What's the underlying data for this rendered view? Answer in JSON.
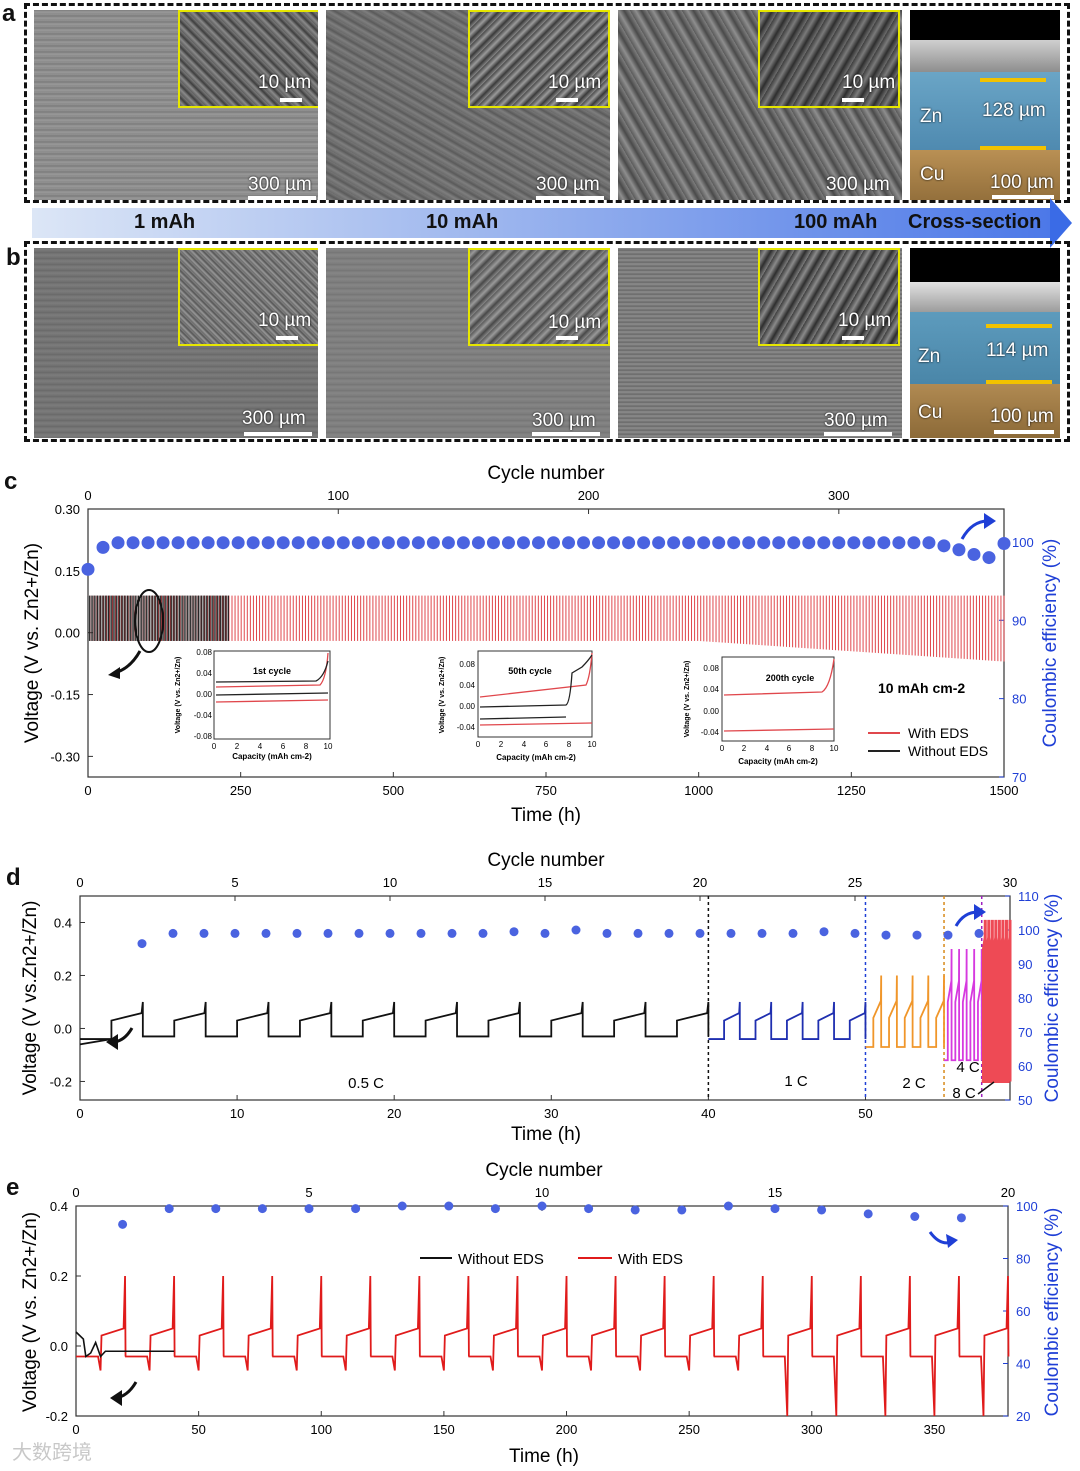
{
  "panel_letters": {
    "a": "a",
    "b": "b",
    "c": "c",
    "d": "d",
    "e": "e"
  },
  "sem_row_a": {
    "images": [
      {
        "inset_scale": "10 µm",
        "main_scale": "300 µm"
      },
      {
        "inset_scale": "10 µm",
        "main_scale": "300 µm"
      },
      {
        "inset_scale": "10 µm",
        "main_scale": "300 µm"
      }
    ],
    "cross_section": {
      "zn_label": "Zn",
      "cu_label": "Cu",
      "thickness": "128 µm",
      "scale": "100 µm"
    }
  },
  "capacity_arrow": {
    "labels": [
      "1 mAh",
      "10 mAh",
      "100 mAh",
      "Cross-section"
    ]
  },
  "sem_row_b": {
    "images": [
      {
        "inset_scale": "10 µm",
        "main_scale": "300 µm"
      },
      {
        "inset_scale": "10 µm",
        "main_scale": "300 µm"
      },
      {
        "inset_scale": "10 µm",
        "main_scale": "300 µm"
      }
    ],
    "cross_section": {
      "zn_label": "Zn",
      "cu_label": "Cu",
      "thickness": "114 µm",
      "scale": "100 µm"
    }
  },
  "colors": {
    "with_eds": "#e0474c",
    "without_eds": "#222222",
    "ce": "#4a63e0",
    "c1": "#1f2fb0",
    "c2": "#f0962a",
    "c4": "#d63adf",
    "c8": "#ee4a55"
  },
  "watermark": "大数跨境",
  "chart_data": [
    {
      "type": "line",
      "panel": "c",
      "top_axis_label": "Cycle number",
      "xlabel": "Time (h)",
      "ylabel": "Voltage (V vs. Zn2+/Zn)",
      "y2label": "Coulombic efficiency (%)",
      "xlim": [
        0,
        1500
      ],
      "ylim": [
        -0.35,
        0.3
      ],
      "top_xlim": [
        0,
        366
      ],
      "y2lim": [
        70,
        104.2
      ],
      "x_ticks": [
        0,
        250,
        500,
        750,
        1000,
        1250,
        1500
      ],
      "y_ticks": [
        0.3,
        0.15,
        0.0,
        -0.15,
        -0.3
      ],
      "y_tick_labels": [
        "0.30",
        "0.15",
        "0.00",
        "-0.15",
        "-0.30"
      ],
      "top_ticks": [
        0,
        100,
        200,
        300
      ],
      "y2_ticks": [
        70,
        80,
        90,
        100
      ],
      "annotation": "10 mAh cm-2",
      "series": [
        {
          "name": "With EDS",
          "x_range": [
            0,
            1500
          ],
          "upper": 0.09,
          "lower": -0.02,
          "lower_end": -0.07
        },
        {
          "name": "Without EDS",
          "x_range": [
            0,
            230
          ],
          "upper": 0.09,
          "lower": -0.02
        }
      ],
      "ce_points": {
        "cycle": [
          0,
          6,
          12,
          18,
          24,
          30,
          36,
          42,
          48,
          54,
          60,
          66,
          72,
          78,
          84,
          90,
          96,
          102,
          108,
          114,
          120,
          126,
          132,
          138,
          144,
          150,
          156,
          162,
          168,
          174,
          180,
          186,
          192,
          198,
          204,
          210,
          216,
          222,
          228,
          234,
          240,
          246,
          252,
          258,
          264,
          270,
          276,
          282,
          288,
          294,
          300,
          306,
          312,
          318,
          324,
          330,
          336,
          342,
          348,
          354,
          360,
          366
        ],
        "ce": [
          96.5,
          99.3,
          99.9,
          99.9,
          99.9,
          99.9,
          99.9,
          99.9,
          99.9,
          99.9,
          99.9,
          99.9,
          99.9,
          99.9,
          99.9,
          99.9,
          99.9,
          99.9,
          99.9,
          99.9,
          99.9,
          99.9,
          99.9,
          99.9,
          99.9,
          99.9,
          99.9,
          99.9,
          99.9,
          99.9,
          99.9,
          99.9,
          99.9,
          99.9,
          99.9,
          99.9,
          99.9,
          99.9,
          99.9,
          99.9,
          99.9,
          99.9,
          99.9,
          99.9,
          99.9,
          99.9,
          99.9,
          99.9,
          99.9,
          99.9,
          99.9,
          99.9,
          99.9,
          99.9,
          99.9,
          99.9,
          99.9,
          99.5,
          99.0,
          98.4,
          98.0,
          99.8
        ]
      },
      "insets": [
        {
          "title": "1st cycle",
          "xlabel": "Capacity (mAh cm-2)",
          "ylabel": "Voltage (V vs. Zn2+/Zn)",
          "x_ticks": [
            0,
            2,
            4,
            6,
            8,
            10
          ],
          "y_ticks": [
            "0.08",
            "0.04",
            "0.00",
            "-0.04",
            "-0.08"
          ]
        },
        {
          "title": "50th cycle",
          "xlabel": "Capacity (mAh cm-2)",
          "ylabel": "Voltage (V vs. Zn2+/Zn)",
          "x_ticks": [
            0,
            2,
            4,
            6,
            8,
            10
          ],
          "y_ticks": [
            "0.08",
            "0.04",
            "0.00",
            "-0.04"
          ]
        },
        {
          "title": "200th cycle",
          "xlabel": "Capacity (mAh cm-2)",
          "ylabel": "Voltage (V vs. Zn2+/Zn)",
          "x_ticks": [
            0,
            2,
            4,
            6,
            8,
            10
          ],
          "y_ticks": [
            "0.08",
            "0.04",
            "0.00",
            "-0.04"
          ]
        }
      ]
    },
    {
      "type": "line",
      "panel": "d",
      "top_axis_label": "Cycle number",
      "xlabel": "Time (h)",
      "ylabel": "Voltage (V vs.Zn2+/Zn)",
      "y2label": "Coulombic efficiency (%)",
      "xlim": [
        0,
        59.2
      ],
      "ylim": [
        -0.27,
        0.5
      ],
      "top_xlim": [
        0,
        30
      ],
      "y2lim": [
        50,
        110
      ],
      "x_ticks": [
        0,
        10,
        20,
        30,
        40,
        50
      ],
      "y_ticks": [
        0.4,
        0.2,
        0.0,
        -0.2
      ],
      "y_tick_labels": [
        "0.4",
        "0.2",
        "0.0",
        "-0.2"
      ],
      "top_ticks": [
        0,
        5,
        10,
        15,
        20,
        25,
        30
      ],
      "y2_ticks": [
        50,
        60,
        70,
        80,
        90,
        100,
        110
      ],
      "rate_labels": [
        "0.5 C",
        "1 C",
        "2 C",
        "4 C",
        "8 C"
      ],
      "rate_boundaries_h": [
        40,
        50,
        55,
        57.4
      ],
      "series": [
        {
          "name": "0.5 C",
          "x_range": [
            0,
            40
          ],
          "cycles": 10,
          "upper": 0.03,
          "lower": -0.03,
          "peak": 0.1
        },
        {
          "name": "1 C",
          "x_range": [
            40,
            50
          ],
          "cycles": 5,
          "upper": 0.03,
          "lower": -0.04,
          "peak": 0.1
        },
        {
          "name": "2 C",
          "x_range": [
            50,
            55
          ],
          "cycles": 5,
          "upper": 0.04,
          "lower": -0.07,
          "peak": 0.2
        },
        {
          "name": "4 C",
          "x_range": [
            55,
            57.4
          ],
          "cycles": 5,
          "upper": 0.1,
          "lower": -0.12,
          "peak": 0.3
        },
        {
          "name": "8 C",
          "x_range": [
            57.4,
            59.2
          ],
          "cycles": 8,
          "upper": 0.3,
          "lower": -0.2,
          "peak": 0.41
        }
      ],
      "ce_points": {
        "cycle": [
          2,
          3,
          4,
          5,
          6,
          7,
          8,
          9,
          10,
          11,
          12,
          13,
          14,
          15,
          16,
          17,
          18,
          19,
          20,
          21,
          22,
          23,
          24,
          25,
          26,
          27,
          28,
          29
        ],
        "ce": [
          96,
          99,
          99,
          99,
          99,
          99,
          99,
          99,
          99,
          99,
          99,
          99,
          99.5,
          99,
          100,
          99,
          99,
          99,
          99,
          99,
          99,
          99,
          99.5,
          99,
          98.5,
          98.5,
          98.5,
          99
        ]
      }
    },
    {
      "type": "line",
      "panel": "e",
      "top_axis_label": "Cycle number",
      "xlabel": "Time (h)",
      "ylabel": "Voltage (V vs. Zn2+/Zn)",
      "y2label": "Coulombic efficiency (%)",
      "xlim": [
        0,
        380
      ],
      "ylim": [
        -0.2,
        0.4
      ],
      "top_xlim": [
        0,
        20
      ],
      "y2lim": [
        20,
        100
      ],
      "x_ticks": [
        0,
        50,
        100,
        150,
        200,
        250,
        300,
        350
      ],
      "y_ticks": [
        0.4,
        0.2,
        0.0,
        -0.2
      ],
      "y_tick_labels": [
        "0.4",
        "0.2",
        "0.0",
        "-0.2"
      ],
      "top_ticks": [
        0,
        5,
        10,
        15,
        20
      ],
      "y2_ticks": [
        20,
        40,
        60,
        80,
        100
      ],
      "series": [
        {
          "name": "Without EDS",
          "x_range": [
            0,
            25
          ],
          "upper": 0.01,
          "lower": -0.02
        },
        {
          "name": "With EDS",
          "x_range": [
            0,
            380
          ],
          "cycles": 19,
          "upper": 0.03,
          "lower": -0.03,
          "peak": 0.2
        }
      ],
      "ce_points": {
        "cycle": [
          1,
          2,
          3,
          4,
          5,
          6,
          7,
          8,
          9,
          10,
          11,
          12,
          13,
          14,
          15,
          16,
          17,
          18,
          19
        ],
        "ce": [
          93,
          99,
          99,
          99,
          99,
          99,
          100,
          100,
          99,
          100,
          99,
          98.5,
          98.5,
          100,
          99,
          98.5,
          97,
          96,
          95.5
        ]
      }
    }
  ]
}
